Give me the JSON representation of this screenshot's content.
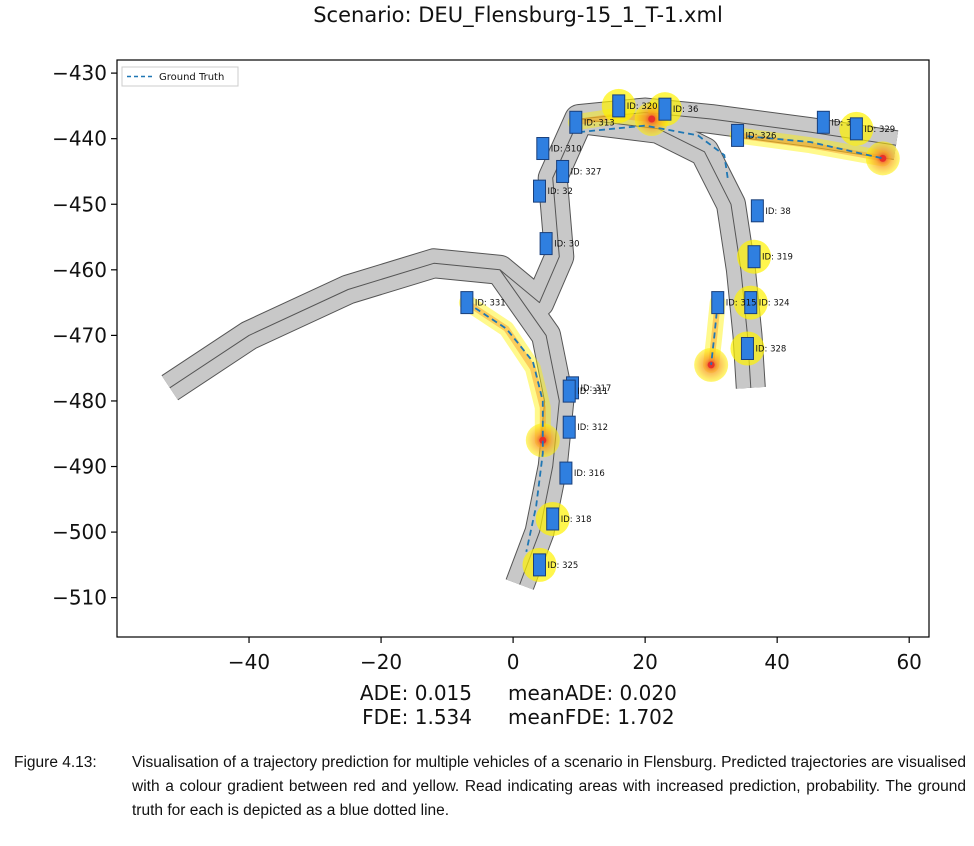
{
  "chart_data": {
    "type": "scatter",
    "title": "Scenario: DEU_Flensburg-15_1_T-1.xml",
    "xlim": [
      -60,
      63
    ],
    "ylim": [
      -516,
      -428
    ],
    "xticks": [
      -40,
      -20,
      0,
      20,
      40,
      60
    ],
    "yticks": [
      -430,
      -440,
      -450,
      -460,
      -470,
      -480,
      -490,
      -500,
      -510
    ],
    "xtick_labels": [
      "−40",
      "−20",
      "0",
      "20",
      "40",
      "60"
    ],
    "ytick_labels": [
      "−430",
      "−440",
      "−450",
      "−460",
      "−470",
      "−480",
      "−490",
      "−500",
      "−510"
    ],
    "legend": {
      "position": "top-left",
      "entries": [
        "Ground Truth"
      ]
    },
    "grid": false,
    "colors": {
      "road": "#c8c8c8",
      "road_edge": "#555555",
      "vehicle": "#2f7fe0",
      "ground_truth": "#1f77b4",
      "prediction_high": "#e8302a",
      "prediction_low": "#fff200"
    },
    "roads": [
      {
        "centerline": [
          [
            -52,
            -478
          ],
          [
            -40,
            -470
          ],
          [
            -25,
            -463
          ],
          [
            -12,
            -459
          ],
          [
            -2,
            -460
          ],
          [
            4,
            -465
          ],
          [
            7,
            -458
          ],
          [
            6,
            -446
          ],
          [
            10,
            -437
          ],
          [
            20,
            -436
          ],
          [
            30,
            -437
          ],
          [
            45,
            -439
          ],
          [
            58,
            -441
          ]
        ]
      },
      {
        "centerline": [
          [
            -2,
            -460
          ],
          [
            5,
            -470
          ],
          [
            7,
            -480
          ],
          [
            6,
            -490
          ],
          [
            4,
            -500
          ],
          [
            1,
            -508
          ]
        ]
      },
      {
        "centerline": [
          [
            10,
            -437
          ],
          [
            22,
            -438.5
          ],
          [
            29,
            -442
          ],
          [
            33,
            -450
          ],
          [
            34.5,
            -460
          ],
          [
            35.5,
            -470
          ],
          [
            36,
            -478
          ]
        ]
      }
    ],
    "vehicles": [
      {
        "id": "ID: 320",
        "x": 16,
        "y": -435,
        "highlight": true
      },
      {
        "id": "ID: 36",
        "x": 23,
        "y": -435.5,
        "highlight": true
      },
      {
        "id": "ID: 313",
        "x": 9.5,
        "y": -437.5,
        "highlight": false
      },
      {
        "id": "ID: 310",
        "x": 4.5,
        "y": -441.5,
        "highlight": false
      },
      {
        "id": "ID: 327",
        "x": 7.5,
        "y": -445,
        "highlight": false
      },
      {
        "id": "ID: 32",
        "x": 4,
        "y": -448,
        "highlight": false
      },
      {
        "id": "ID: 30",
        "x": 5,
        "y": -456,
        "highlight": false
      },
      {
        "id": "ID: 331",
        "x": -7,
        "y": -465,
        "highlight": false
      },
      {
        "id": "ID: 322",
        "x": 47,
        "y": -437.5,
        "highlight": false
      },
      {
        "id": "ID: 329",
        "x": 52,
        "y": -438.5,
        "highlight": true
      },
      {
        "id": "ID: 326",
        "x": 34,
        "y": -439.5,
        "highlight": false
      },
      {
        "id": "ID: 38",
        "x": 37,
        "y": -451,
        "highlight": false
      },
      {
        "id": "ID: 319",
        "x": 36.5,
        "y": -458,
        "highlight": true
      },
      {
        "id": "ID: 324",
        "x": 36,
        "y": -465,
        "highlight": true
      },
      {
        "id": "ID: 315",
        "x": 31,
        "y": -465,
        "highlight": false
      },
      {
        "id": "ID: 328",
        "x": 35.5,
        "y": -472,
        "highlight": true
      },
      {
        "id": "ID: 317",
        "x": 9,
        "y": -478,
        "highlight": false
      },
      {
        "id": "ID: 311",
        "x": 8.5,
        "y": -478.5,
        "highlight": false
      },
      {
        "id": "ID: 312",
        "x": 8.5,
        "y": -484,
        "highlight": false
      },
      {
        "id": "ID: 316",
        "x": 8,
        "y": -491,
        "highlight": false
      },
      {
        "id": "ID: 318",
        "x": 6,
        "y": -498,
        "highlight": true
      },
      {
        "id": "ID: 325",
        "x": 4,
        "y": -505,
        "highlight": true
      }
    ],
    "ground_truth": [
      [
        [
          -7,
          -465
        ],
        [
          -1,
          -469
        ],
        [
          3,
          -474
        ],
        [
          4.5,
          -480
        ],
        [
          4.5,
          -488
        ],
        [
          3.5,
          -496
        ],
        [
          2,
          -503
        ]
      ],
      [
        [
          10,
          -439
        ],
        [
          20,
          -438
        ],
        [
          28,
          -439.5
        ],
        [
          32,
          -442.5
        ],
        [
          32.5,
          -446
        ]
      ],
      [
        [
          34,
          -439.5
        ],
        [
          45,
          -440.5
        ],
        [
          56,
          -443
        ]
      ],
      [
        [
          31,
          -465
        ],
        [
          30.5,
          -470
        ],
        [
          30,
          -474.5
        ]
      ]
    ],
    "predictions": [
      [
        [
          -7,
          -465
        ],
        [
          -1,
          -469
        ],
        [
          3,
          -475
        ],
        [
          4.5,
          -481
        ],
        [
          4.5,
          -486
        ]
      ],
      [
        [
          9.5,
          -437.5
        ],
        [
          16,
          -436.5
        ],
        [
          21,
          -437
        ]
      ],
      [
        [
          34,
          -439.5
        ],
        [
          45,
          -441
        ],
        [
          56,
          -443
        ]
      ],
      [
        [
          31,
          -465
        ],
        [
          30.5,
          -470
        ],
        [
          30,
          -474.5
        ]
      ]
    ],
    "prediction_endpoints": [
      [
        4.5,
        -486
      ],
      [
        21,
        -437
      ],
      [
        56,
        -443
      ],
      [
        30,
        -474.5
      ]
    ],
    "metrics": {
      "ade": "ADE: 0.015",
      "mean_ade": "meanADE: 0.020",
      "fde": "FDE: 1.534",
      "mean_fde": "meanFDE: 1.702"
    }
  },
  "caption": {
    "label": "Figure 4.13:",
    "text": "Visualisation of a trajectory prediction for multiple vehicles of a scenario in Flensburg.  Predicted trajectories are visualised with a colour gradient between red and yellow. Read indicating areas with increased prediction, probability. The ground truth for each is depicted as a blue dotted line."
  }
}
